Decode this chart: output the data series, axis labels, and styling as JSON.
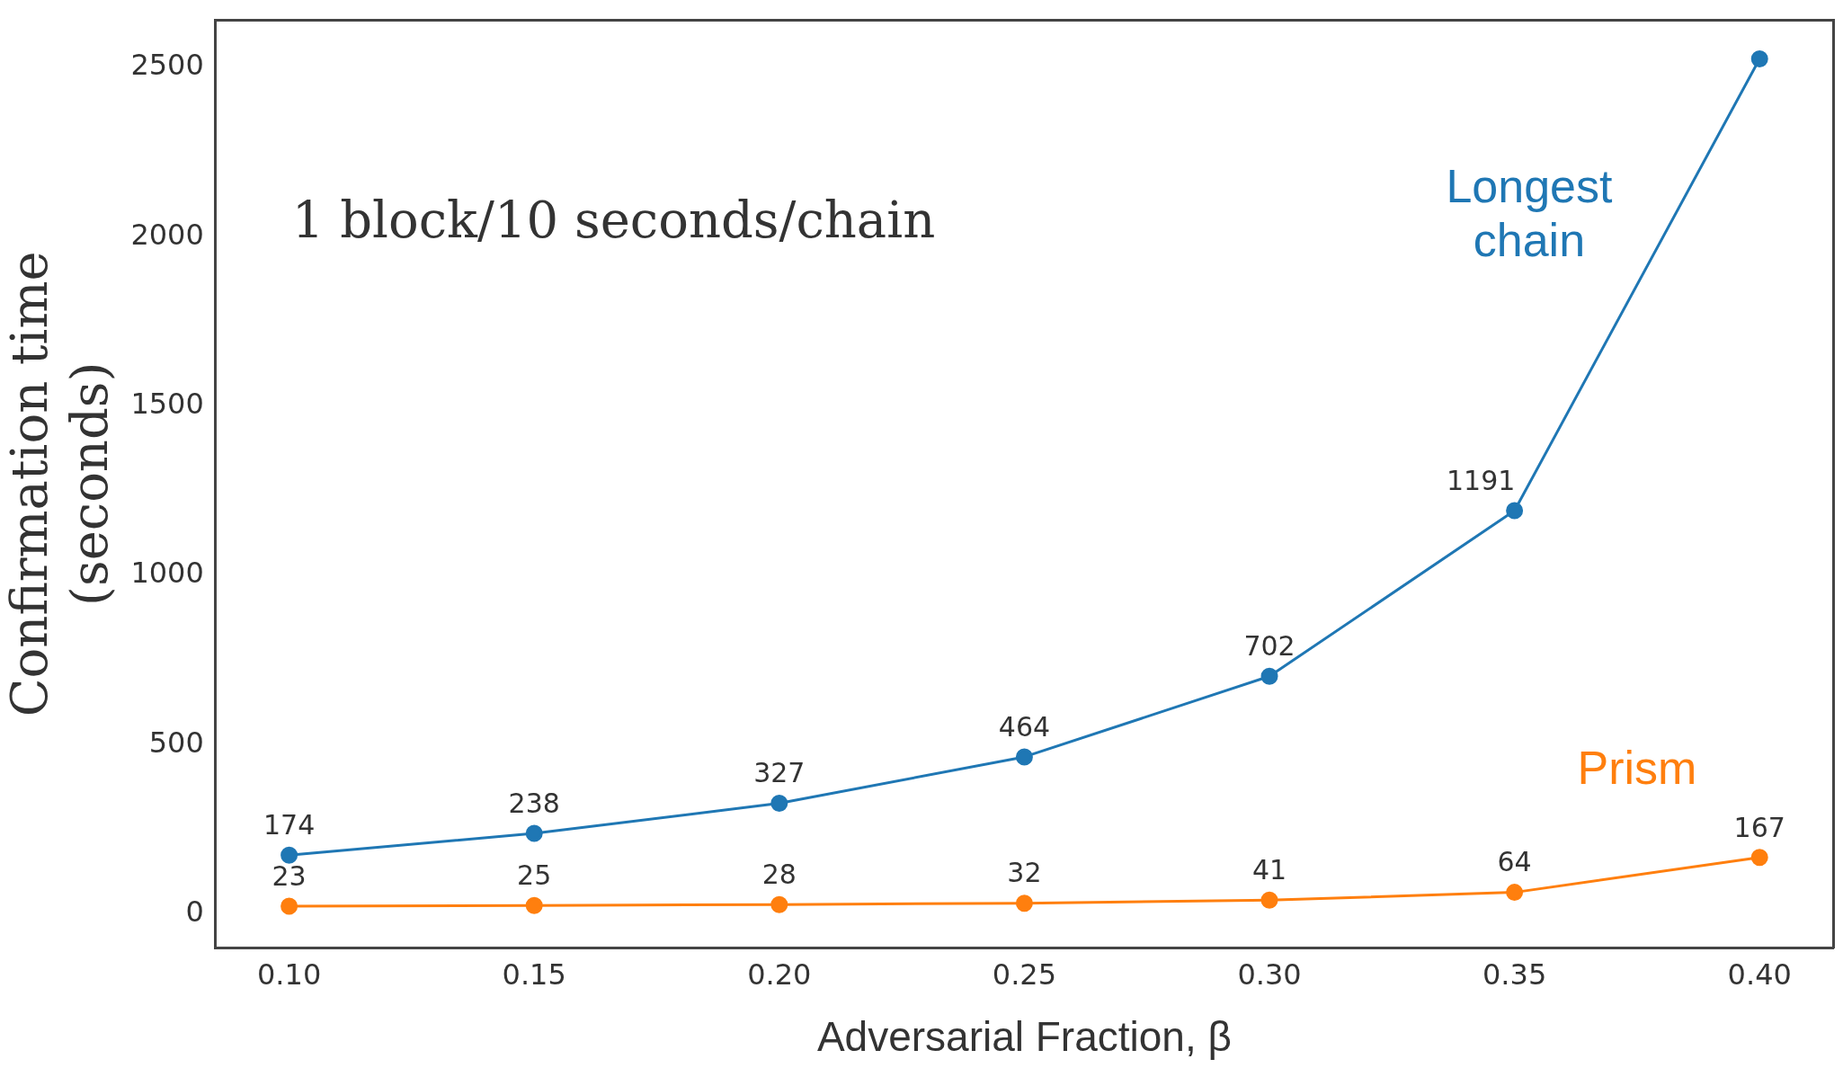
{
  "chart_data": {
    "type": "line",
    "xlabel": "Adversarial Fraction, β",
    "ylabel": "Confirmation time (seconds)",
    "x": [
      0.1,
      0.15,
      0.2,
      0.25,
      0.3,
      0.35,
      0.4
    ],
    "xlim": [
      0.085,
      0.415
    ],
    "xticks": [
      {
        "value": 0.1,
        "label": "0.10"
      },
      {
        "value": 0.15,
        "label": "0.15"
      },
      {
        "value": 0.2,
        "label": "0.20"
      },
      {
        "value": 0.25,
        "label": "0.25"
      },
      {
        "value": 0.3,
        "label": "0.30"
      },
      {
        "value": 0.35,
        "label": "0.35"
      },
      {
        "value": 0.4,
        "label": "0.40"
      }
    ],
    "ylim": [
      -100,
      2640
    ],
    "yticks": [
      0,
      500,
      1000,
      1500,
      2000,
      2500
    ],
    "series": [
      {
        "name": "Longest chain",
        "color": "#1f77b4",
        "values": [
          174,
          238,
          327,
          464,
          702,
          1191,
          2525
        ],
        "value_labels": [
          "174",
          "238",
          "327",
          "464",
          "702",
          "1191",
          null
        ]
      },
      {
        "name": "Prism",
        "color": "#ff7f0e",
        "values": [
          23,
          25,
          28,
          32,
          41,
          64,
          167
        ],
        "value_labels": [
          "23",
          "25",
          "28",
          "32",
          "41",
          "64",
          "167"
        ]
      }
    ],
    "annotations": [
      "1 block/10 seconds/chain"
    ],
    "marker": "circle",
    "line_style": "solid",
    "grid": false,
    "legend": false
  }
}
